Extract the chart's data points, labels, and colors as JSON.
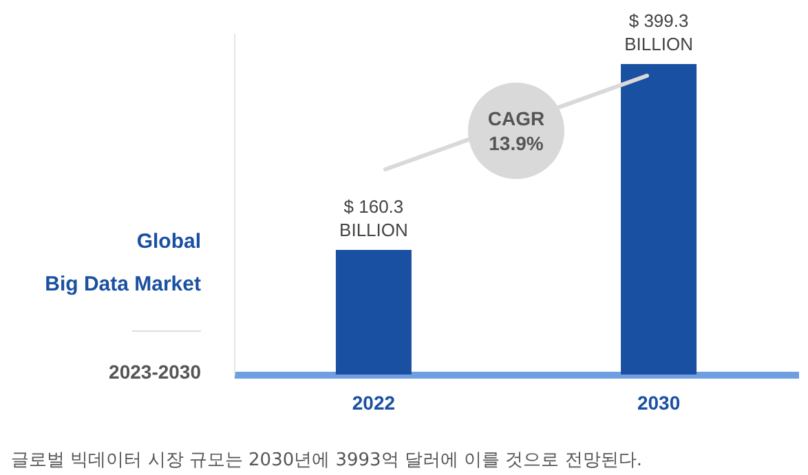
{
  "chart_data": {
    "type": "bar",
    "title": "Global\nBig Data Market",
    "subtitle": "2023-2030",
    "categories": [
      "2022",
      "2030"
    ],
    "values": [
      160.3,
      399.3
    ],
    "value_labels": [
      "$ 160.3\nBILLION",
      "$ 399.3\nBILLION"
    ],
    "color": "#1a50a1",
    "relative": false,
    "annotations": [
      "CAGR\n13.9%",
      "글로벌 빅데이터 시장 규모는 2030년에 3993억 달러에 이를 것으로 전망된다."
    ]
  }
}
